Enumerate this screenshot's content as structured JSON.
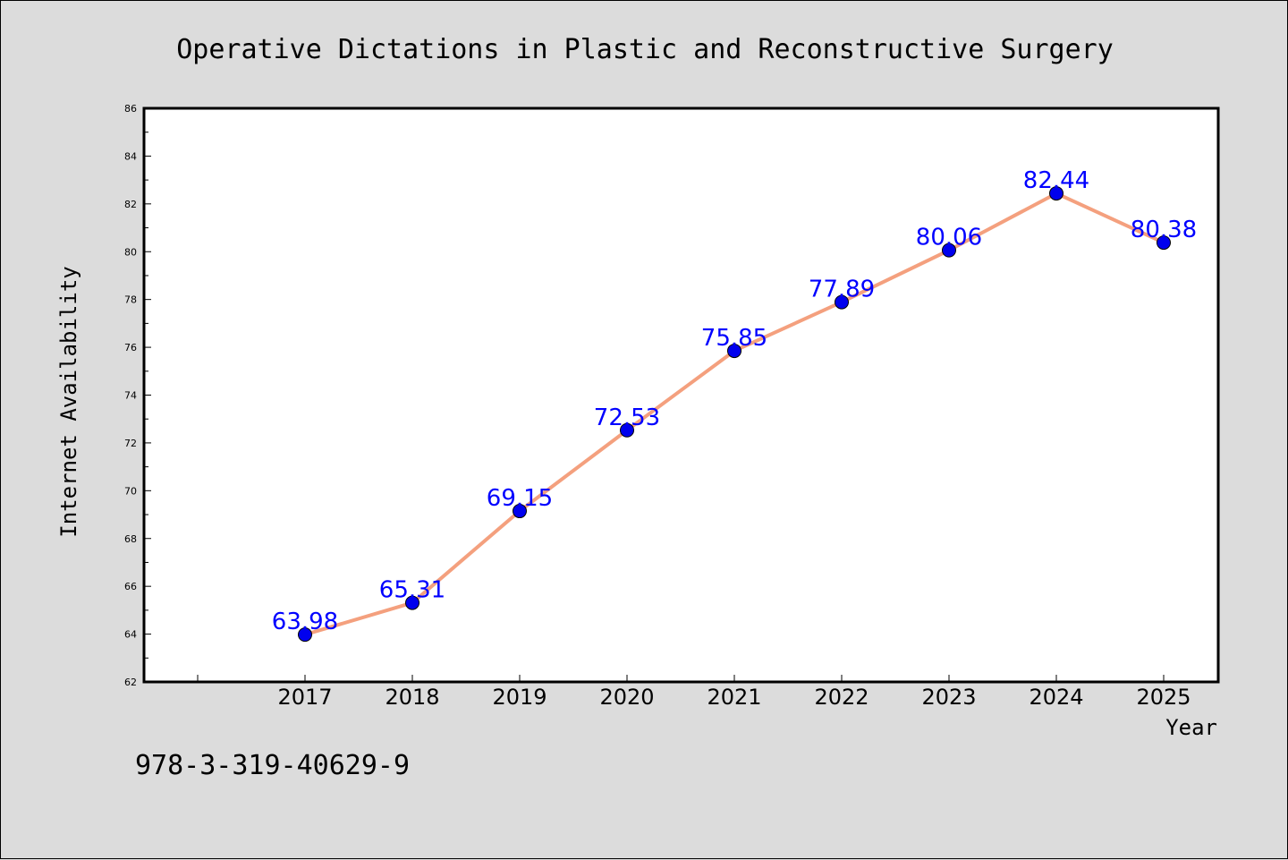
{
  "chart_data": {
    "type": "line",
    "title": "Operative Dictations in Plastic and Reconstructive Surgery",
    "xlabel": "Year",
    "ylabel": "Internet Availability",
    "categories": [
      "2017",
      "2018",
      "2019",
      "2020",
      "2021",
      "2022",
      "2023",
      "2024",
      "2025"
    ],
    "series": [
      {
        "values": [
          63.98,
          65.31,
          69.15,
          72.53,
          75.85,
          77.89,
          80.06,
          82.44,
          80.38
        ]
      }
    ],
    "data_labels": [
      "63.98",
      "65.31",
      "69.15",
      "72.53",
      "75.85",
      "77.89",
      "80.06",
      "82.44",
      "80.38"
    ],
    "ylim": [
      62,
      86
    ],
    "y_ticks": [
      62,
      64,
      66,
      68,
      70,
      72,
      74,
      76,
      78,
      80,
      82,
      84,
      86
    ],
    "grid": false,
    "legend": "none"
  },
  "footnote": "978-3-319-40629-9",
  "colors": {
    "line": "#f4a07e",
    "marker": "#0000ee",
    "data_label": "#0000ff",
    "plot_background": "#ffffff",
    "page_background": "#dcdcdc"
  }
}
